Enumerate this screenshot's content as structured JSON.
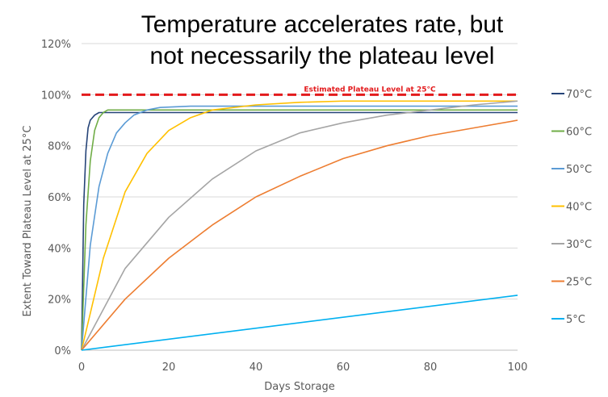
{
  "chart_data": {
    "type": "line",
    "title_lines": [
      "Temperature accelerates rate, but",
      "not necessarily the plateau level"
    ],
    "xlabel": "Days Storage",
    "ylabel": "Extent Toward Plateau Level at 25°C",
    "xlim": [
      0,
      100
    ],
    "ylim": [
      0,
      1.2
    ],
    "x_ticks": [
      0,
      20,
      40,
      60,
      80,
      100
    ],
    "x_tick_labels": [
      "0",
      "20",
      "40",
      "60",
      "80",
      "100"
    ],
    "y_ticks": [
      0,
      0.2,
      0.4,
      0.6,
      0.8,
      1.0,
      1.2
    ],
    "y_tick_labels": [
      "0%",
      "20%",
      "40%",
      "60%",
      "80%",
      "100%",
      "120%"
    ],
    "grid": "horizontal",
    "legend_position": "right",
    "annotation": {
      "label": "Estimated Plateau Level at 25°C",
      "y": 1.0,
      "color": "#e31a1c",
      "style": "dashed"
    },
    "series": [
      {
        "name": "70°C",
        "color": "#264478",
        "x": [
          0,
          0.5,
          1,
          1.5,
          2,
          3,
          4,
          5,
          10,
          20,
          40,
          60,
          80,
          100
        ],
        "y": [
          0,
          0.57,
          0.78,
          0.87,
          0.9,
          0.92,
          0.93,
          0.93,
          0.93,
          0.93,
          0.93,
          0.93,
          0.93,
          0.93
        ]
      },
      {
        "name": "60°C",
        "color": "#70ad47",
        "x": [
          0,
          1,
          2,
          3,
          4,
          5,
          6,
          8,
          10,
          15,
          20,
          40,
          60,
          80,
          100
        ],
        "y": [
          0,
          0.49,
          0.74,
          0.86,
          0.91,
          0.93,
          0.94,
          0.94,
          0.94,
          0.94,
          0.94,
          0.94,
          0.94,
          0.94,
          0.94
        ]
      },
      {
        "name": "50°C",
        "color": "#5b9bd5",
        "x": [
          0,
          2,
          4,
          6,
          8,
          10,
          12,
          15,
          18,
          25,
          40,
          60,
          80,
          100
        ],
        "y": [
          0,
          0.41,
          0.64,
          0.77,
          0.85,
          0.89,
          0.92,
          0.94,
          0.95,
          0.955,
          0.955,
          0.955,
          0.955,
          0.955
        ]
      },
      {
        "name": "40°C",
        "color": "#ffc000",
        "x": [
          0,
          5,
          10,
          15,
          20,
          25,
          30,
          40,
          50,
          60,
          80,
          100
        ],
        "y": [
          0,
          0.36,
          0.62,
          0.77,
          0.86,
          0.91,
          0.94,
          0.96,
          0.97,
          0.975,
          0.975,
          0.975
        ]
      },
      {
        "name": "30°C",
        "color": "#a5a5a5",
        "x": [
          0,
          10,
          20,
          30,
          40,
          50,
          60,
          70,
          80,
          90,
          100
        ],
        "y": [
          0,
          0.32,
          0.52,
          0.67,
          0.78,
          0.85,
          0.89,
          0.92,
          0.94,
          0.96,
          0.975
        ]
      },
      {
        "name": "25°C",
        "color": "#ed7d31",
        "x": [
          0,
          10,
          20,
          30,
          40,
          50,
          60,
          70,
          80,
          90,
          100
        ],
        "y": [
          0,
          0.2,
          0.36,
          0.49,
          0.6,
          0.68,
          0.75,
          0.8,
          0.84,
          0.87,
          0.9
        ]
      },
      {
        "name": "5°C",
        "color": "#00b0f0",
        "x": [
          0,
          100
        ],
        "y": [
          0,
          0.215
        ]
      }
    ]
  }
}
